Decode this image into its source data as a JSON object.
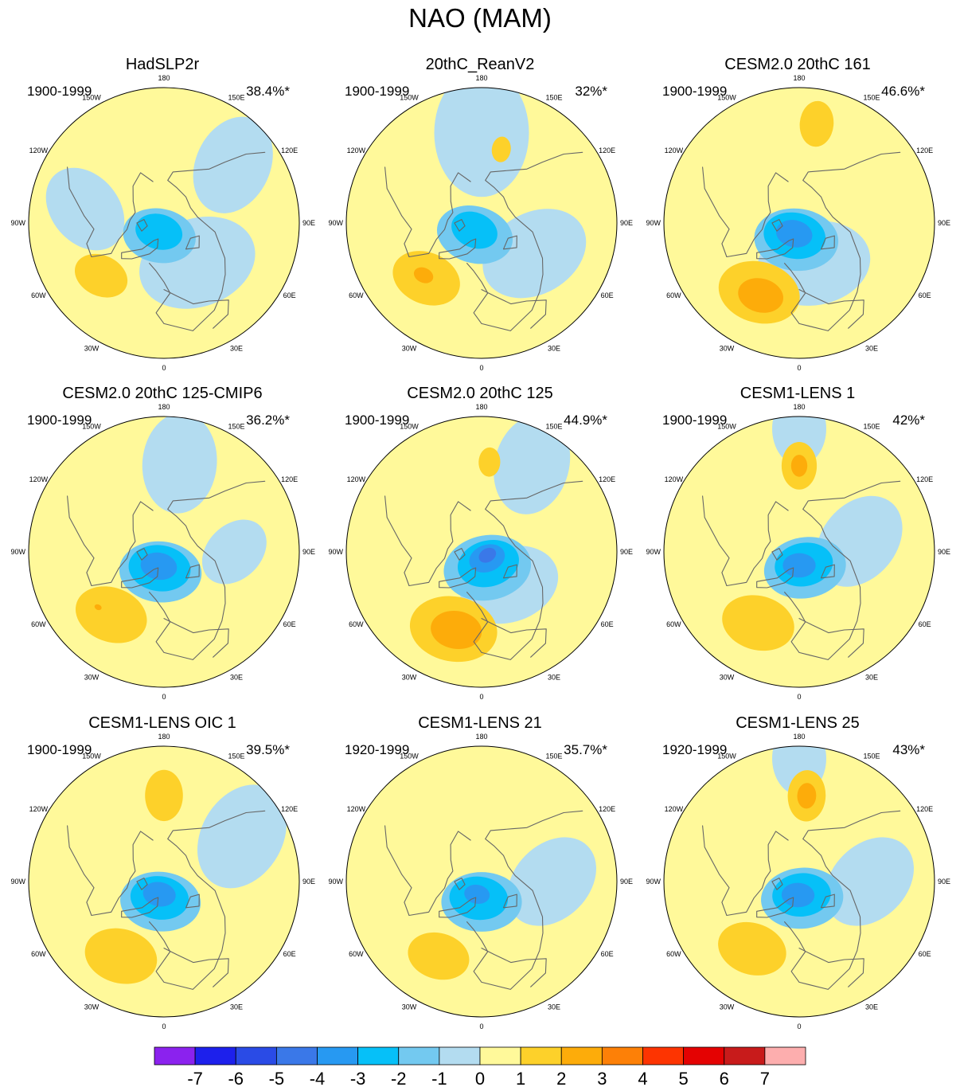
{
  "figure": {
    "title": "NAO (MAM)"
  },
  "colors": {
    "shading": [
      "#8b22ee",
      "#1d20ec",
      "#2a4be6",
      "#3a78e8",
      "#2799f2",
      "#06c0f8",
      "#73c9f0",
      "#b3dcf0",
      "#fff99a",
      "#fdd12a",
      "#fdac0a",
      "#fd8007",
      "#fd3401",
      "#e40202",
      "#c81b1b",
      "#fdaeae"
    ],
    "coastline": "#666666",
    "outline": "#000000"
  },
  "colorbar": {
    "labels": [
      "-7",
      "-6",
      "-5",
      "-4",
      "-3",
      "-2",
      "-1",
      "0",
      "1",
      "2",
      "3",
      "4",
      "5",
      "6",
      "7"
    ]
  },
  "longitude_labels": [
    "180",
    "150E",
    "120E",
    "90E",
    "60E",
    "30E",
    "0",
    "30W",
    "60W",
    "90W",
    "120W",
    "150W"
  ],
  "panels": [
    {
      "title": "HadSLP2r",
      "period": "1900-1999",
      "variance": "38.4%*",
      "features": [
        {
          "lon": 0,
          "colat": 55,
          "value": 0.5,
          "r": 60
        },
        {
          "lon": 180,
          "colat": 60,
          "value": 0.5,
          "r": 90
        },
        {
          "lon": 40,
          "colat": 30,
          "value": -0.5,
          "r": 65
        },
        {
          "lon": -100,
          "colat": 45,
          "value": -0.5,
          "r": 50
        },
        {
          "lon": 130,
          "colat": 50,
          "value": -0.5,
          "r": 55
        },
        {
          "lon": -20,
          "colat": 8,
          "value": -1.5,
          "r": 40
        },
        {
          "lon": -30,
          "colat": 6,
          "value": -2.5,
          "r": 26
        },
        {
          "lon": -50,
          "colat": 46,
          "value": 1.5,
          "r": 30
        }
      ]
    },
    {
      "title": "20thC_ReanV2",
      "period": "1900-1999",
      "variance": "32%*",
      "features": [
        {
          "lon": 0,
          "colat": 55,
          "value": 0.5,
          "r": 60
        },
        {
          "lon": 180,
          "colat": 50,
          "value": -0.5,
          "r": 70
        },
        {
          "lon": 60,
          "colat": 35,
          "value": -0.5,
          "r": 60
        },
        {
          "lon": -30,
          "colat": 8,
          "value": -1.5,
          "r": 42
        },
        {
          "lon": -45,
          "colat": 6,
          "value": -2.5,
          "r": 26
        },
        {
          "lon": -45,
          "colat": 44,
          "value": 1.5,
          "r": 38
        },
        {
          "lon": -48,
          "colat": 44,
          "value": 2.5,
          "r": 11
        },
        {
          "lon": 165,
          "colat": 43,
          "value": 1.5,
          "r": 14
        }
      ]
    },
    {
      "title": "CESM2.0 20thC 161",
      "period": "1900-1999",
      "variance": "46.6%*",
      "features": [
        {
          "lon": 0,
          "colat": 55,
          "value": 0.5,
          "r": 60
        },
        {
          "lon": 20,
          "colat": 25,
          "value": -0.5,
          "r": 62
        },
        {
          "lon": -10,
          "colat": 10,
          "value": -1.5,
          "r": 46
        },
        {
          "lon": -20,
          "colat": 8,
          "value": -2.5,
          "r": 34
        },
        {
          "lon": -25,
          "colat": 7,
          "value": -3.5,
          "r": 20
        },
        {
          "lon": -30,
          "colat": 45,
          "value": 1.5,
          "r": 45
        },
        {
          "lon": -28,
          "colat": 46,
          "value": 2.5,
          "r": 25
        },
        {
          "lon": 170,
          "colat": 55,
          "value": 1.5,
          "r": 25
        }
      ]
    },
    {
      "title": "CESM2.0 20thC 125-CMIP6",
      "period": "1900-1999",
      "variance": "36.2%*",
      "features": [
        {
          "lon": 0,
          "colat": 55,
          "value": 0.5,
          "r": 60
        },
        {
          "lon": 170,
          "colat": 50,
          "value": -0.5,
          "r": 55
        },
        {
          "lon": 90,
          "colat": 40,
          "value": -0.5,
          "r": 40
        },
        {
          "lon": -10,
          "colat": 12,
          "value": -1.5,
          "r": 45
        },
        {
          "lon": -15,
          "colat": 10,
          "value": -2.5,
          "r": 34
        },
        {
          "lon": -20,
          "colat": 9,
          "value": -3.5,
          "r": 20
        },
        {
          "lon": -40,
          "colat": 46,
          "value": 1.5,
          "r": 40
        },
        {
          "lon": -50,
          "colat": 48,
          "value": 2.5,
          "r": 4
        }
      ]
    },
    {
      "title": "CESM2.0 20thC 125",
      "period": "1900-1999",
      "variance": "44.9%*",
      "features": [
        {
          "lon": 0,
          "colat": 55,
          "value": 0.5,
          "r": 60
        },
        {
          "lon": 150,
          "colat": 55,
          "value": -0.5,
          "r": 55
        },
        {
          "lon": 40,
          "colat": 25,
          "value": -0.5,
          "r": 55
        },
        {
          "lon": 20,
          "colat": 10,
          "value": -1.5,
          "r": 48
        },
        {
          "lon": 30,
          "colat": 8,
          "value": -2.5,
          "r": 34
        },
        {
          "lon": 40,
          "colat": 5,
          "value": -3.5,
          "r": 20
        },
        {
          "lon": 60,
          "colat": 4,
          "value": -4.5,
          "r": 10
        },
        {
          "lon": -20,
          "colat": 46,
          "value": 1.5,
          "r": 48
        },
        {
          "lon": -18,
          "colat": 46,
          "value": 2.5,
          "r": 28
        },
        {
          "lon": 175,
          "colat": 50,
          "value": 1.5,
          "r": 16
        }
      ]
    },
    {
      "title": "CESM1-LENS 1",
      "period": "1900-1999",
      "variance": "42%*",
      "features": [
        {
          "lon": 0,
          "colat": 55,
          "value": 0.5,
          "r": 60
        },
        {
          "lon": 100,
          "colat": 35,
          "value": -0.5,
          "r": 55
        },
        {
          "lon": 180,
          "colat": 65,
          "value": -0.5,
          "r": 40
        },
        {
          "lon": 20,
          "colat": 10,
          "value": -1.5,
          "r": 45
        },
        {
          "lon": 20,
          "colat": 8,
          "value": -2.5,
          "r": 32
        },
        {
          "lon": 0,
          "colat": 8,
          "value": -3.5,
          "r": 18
        },
        {
          "lon": -30,
          "colat": 46,
          "value": 1.5,
          "r": 40
        },
        {
          "lon": 180,
          "colat": 48,
          "value": 1.5,
          "r": 26
        },
        {
          "lon": 180,
          "colat": 48,
          "value": 2.5,
          "r": 12
        }
      ]
    },
    {
      "title": "CESM1-LENS OIC 1",
      "period": "1900-1999",
      "variance": "39.5%*",
      "features": [
        {
          "lon": 0,
          "colat": 55,
          "value": 0.5,
          "r": 60
        },
        {
          "lon": 120,
          "colat": 50,
          "value": -0.5,
          "r": 60
        },
        {
          "lon": -10,
          "colat": 12,
          "value": -1.5,
          "r": 44
        },
        {
          "lon": -15,
          "colat": 10,
          "value": -2.5,
          "r": 32
        },
        {
          "lon": -20,
          "colat": 8,
          "value": -3.5,
          "r": 18
        },
        {
          "lon": -30,
          "colat": 48,
          "value": 1.5,
          "r": 40
        },
        {
          "lon": 180,
          "colat": 48,
          "value": 1.5,
          "r": 28
        }
      ]
    },
    {
      "title": "CESM1-LENS 21",
      "period": "1920-1999",
      "variance": "35.7%*",
      "features": [
        {
          "lon": 0,
          "colat": 55,
          "value": 0.5,
          "r": 60
        },
        {
          "lon": 90,
          "colat": 40,
          "value": -0.5,
          "r": 55
        },
        {
          "lon": 0,
          "colat": 12,
          "value": -1.5,
          "r": 44
        },
        {
          "lon": -10,
          "colat": 10,
          "value": -2.5,
          "r": 32
        },
        {
          "lon": -20,
          "colat": 8,
          "value": -3.5,
          "r": 14
        },
        {
          "lon": -30,
          "colat": 48,
          "value": 1.5,
          "r": 34
        }
      ]
    },
    {
      "title": "CESM1-LENS 25",
      "period": "1920-1999",
      "variance": "43%*",
      "features": [
        {
          "lon": 0,
          "colat": 55,
          "value": 0.5,
          "r": 60
        },
        {
          "lon": 90,
          "colat": 40,
          "value": -0.5,
          "r": 55
        },
        {
          "lon": 180,
          "colat": 65,
          "value": -0.5,
          "r": 40
        },
        {
          "lon": 10,
          "colat": 10,
          "value": -1.5,
          "r": 45
        },
        {
          "lon": 10,
          "colat": 8,
          "value": -2.5,
          "r": 32
        },
        {
          "lon": -5,
          "colat": 8,
          "value": -3.5,
          "r": 18
        },
        {
          "lon": -35,
          "colat": 46,
          "value": 1.5,
          "r": 38
        },
        {
          "lon": 175,
          "colat": 48,
          "value": 1.5,
          "r": 28
        },
        {
          "lon": 175,
          "colat": 48,
          "value": 2.5,
          "r": 14
        }
      ]
    }
  ]
}
